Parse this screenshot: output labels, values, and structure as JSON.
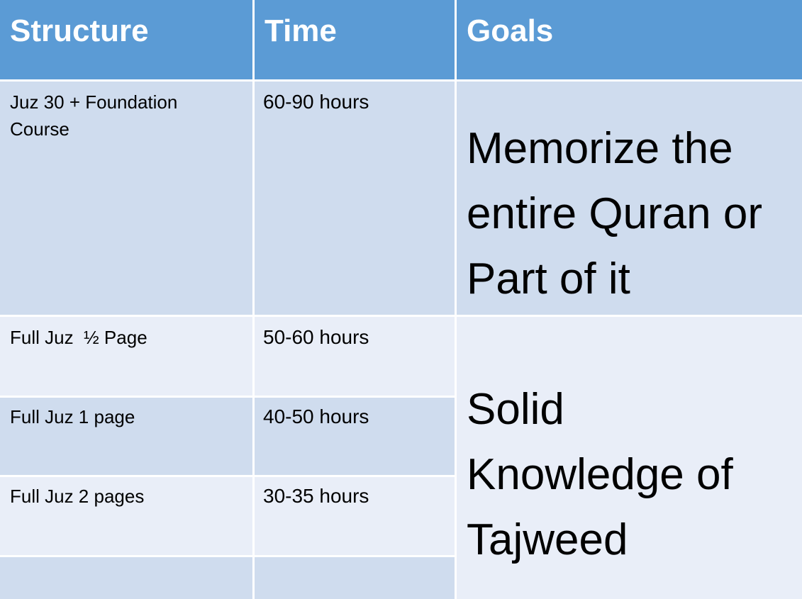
{
  "table": {
    "headers": [
      "Structure",
      "Time",
      "Goals"
    ],
    "rows": [
      {
        "structure": "Juz 30 + Foundation Course",
        "time": "60-90 hours"
      },
      {
        "structure": "Full Juz  ½ Page",
        "time": "50-60 hours"
      },
      {
        "structure": "Full Juz 1 page",
        "time": "40-50 hours"
      },
      {
        "structure": "Full Juz 2 pages",
        "time": "30-35 hours"
      },
      {
        "structure": "",
        "time": ""
      }
    ],
    "goals": [
      "Memorize the entire Quran or Part of it",
      "Solid Knowledge of Tajweed"
    ]
  },
  "colors": {
    "header_bg": "#5b9bd5",
    "row_dark": "#cfdcee",
    "row_light": "#e9eef8",
    "grid_line": "#ffffff"
  }
}
